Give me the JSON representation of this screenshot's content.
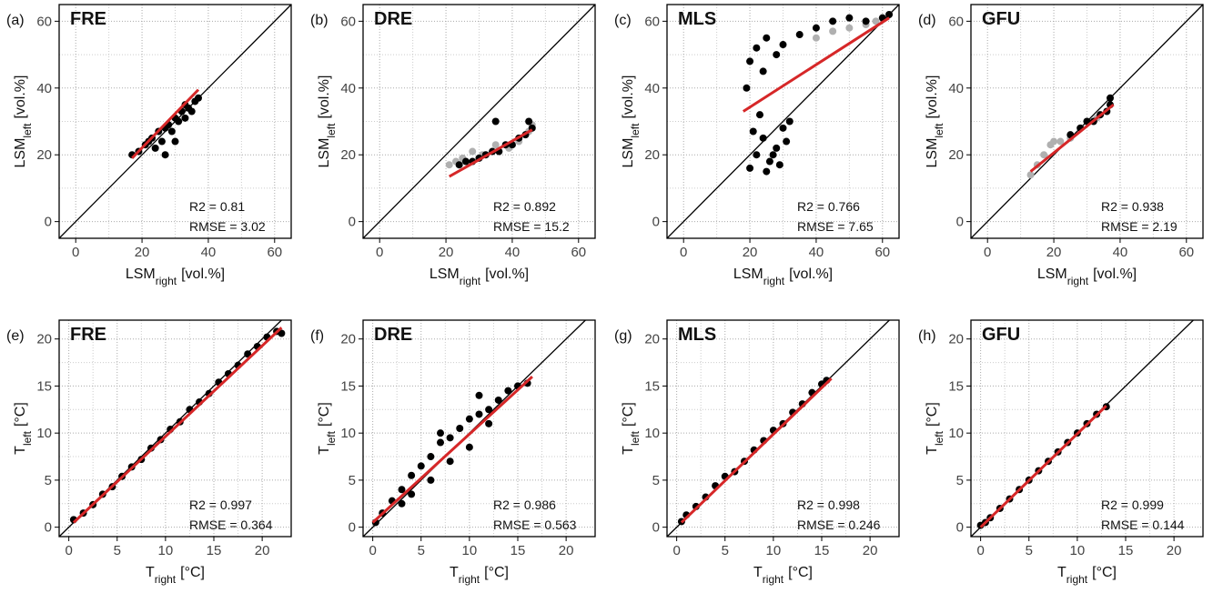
{
  "chart_data": [
    {
      "type": "scatter",
      "panel_label": "(a)",
      "title": "FRE",
      "xlabel": {
        "text": "LSM",
        "sub": "right",
        "unit": "[vol.%]"
      },
      "ylabel": {
        "text": "LSM",
        "sub": "left",
        "unit": "[vol.%]"
      },
      "xlim": [
        -5,
        65
      ],
      "ylim": [
        -5,
        65
      ],
      "xticks": [
        0,
        20,
        40,
        60
      ],
      "yticks": [
        0,
        20,
        40,
        60
      ],
      "grid": true,
      "diagonal": true,
      "annotations": [
        "R2 = 0.81",
        "RMSE = 3.02"
      ],
      "series": [
        {
          "type": "scatter",
          "color": "#000000",
          "x": [
            17,
            19,
            21,
            23,
            24,
            25,
            26,
            27,
            28,
            29,
            30,
            31,
            32,
            33,
            34,
            35,
            36,
            37,
            27,
            30,
            22,
            33
          ],
          "values": [
            20,
            21,
            23,
            25,
            22,
            27,
            24,
            28,
            29,
            27,
            31,
            30,
            33,
            31,
            34,
            33,
            36,
            37,
            20,
            24,
            24,
            35
          ]
        },
        {
          "type": "line",
          "color": "#d62728",
          "x": [
            17,
            37
          ],
          "values": [
            19,
            39.5
          ]
        }
      ]
    },
    {
      "type": "scatter",
      "panel_label": "(b)",
      "title": "DRE",
      "xlabel": {
        "text": "LSM",
        "sub": "right",
        "unit": "[vol.%]"
      },
      "ylabel": {
        "text": "LSM",
        "sub": "left",
        "unit": "[vol.%]"
      },
      "xlim": [
        -5,
        65
      ],
      "ylim": [
        -5,
        65
      ],
      "xticks": [
        0,
        20,
        40,
        60
      ],
      "yticks": [
        0,
        20,
        40,
        60
      ],
      "grid": true,
      "diagonal": true,
      "annotations": [
        "R2 = 0.892",
        "RMSE = 15.2"
      ],
      "series": [
        {
          "type": "scatter",
          "color": "#b0b0b0",
          "x": [
            21,
            23,
            25,
            28,
            31,
            35,
            39,
            42,
            45,
            46
          ],
          "values": [
            17,
            18,
            19,
            21,
            20,
            23,
            22,
            24,
            27,
            29
          ]
        },
        {
          "type": "scatter",
          "color": "#000000",
          "x": [
            24,
            26,
            28,
            30,
            32,
            34,
            36,
            38,
            40,
            42,
            44,
            46,
            35,
            45
          ],
          "values": [
            17,
            18,
            18,
            19,
            20,
            21,
            21,
            23,
            23,
            25,
            26,
            28,
            30,
            30
          ]
        },
        {
          "type": "line",
          "color": "#d62728",
          "x": [
            21,
            46
          ],
          "values": [
            13.5,
            27.5
          ]
        }
      ]
    },
    {
      "type": "scatter",
      "panel_label": "(c)",
      "title": "MLS",
      "xlabel": {
        "text": "LSM",
        "sub": "right",
        "unit": "[vol.%]"
      },
      "ylabel": {
        "text": "LSM",
        "sub": "left",
        "unit": "[vol.%]"
      },
      "xlim": [
        -5,
        65
      ],
      "ylim": [
        -5,
        65
      ],
      "xticks": [
        0,
        20,
        40,
        60
      ],
      "yticks": [
        0,
        20,
        40,
        60
      ],
      "grid": true,
      "diagonal": true,
      "annotations": [
        "R2 = 0.766",
        "RMSE = 7.65"
      ],
      "series": [
        {
          "type": "scatter",
          "color": "#b0b0b0",
          "x": [
            40,
            45,
            50,
            55,
            58
          ],
          "values": [
            55,
            57,
            58,
            59,
            60
          ]
        },
        {
          "type": "scatter",
          "color": "#000000",
          "x": [
            20,
            22,
            24,
            26,
            28,
            30,
            32,
            21,
            25,
            29,
            31,
            23,
            27,
            20,
            22,
            25,
            30,
            35,
            40,
            45,
            50,
            55,
            60,
            62,
            24,
            28,
            19
          ],
          "values": [
            16,
            20,
            25,
            18,
            22,
            28,
            30,
            27,
            15,
            17,
            24,
            32,
            20,
            48,
            52,
            55,
            53,
            56,
            58,
            60,
            61,
            60,
            61,
            62,
            45,
            50,
            40
          ]
        },
        {
          "type": "line",
          "color": "#d62728",
          "x": [
            18,
            62
          ],
          "values": [
            33,
            61
          ]
        }
      ]
    },
    {
      "type": "scatter",
      "panel_label": "(d)",
      "title": "GFU",
      "xlabel": {
        "text": "LSM",
        "sub": "right",
        "unit": "[vol.%]"
      },
      "ylabel": {
        "text": "LSM",
        "sub": "left",
        "unit": "[vol.%]"
      },
      "xlim": [
        -5,
        65
      ],
      "ylim": [
        -5,
        65
      ],
      "xticks": [
        0,
        20,
        40,
        60
      ],
      "yticks": [
        0,
        20,
        40,
        60
      ],
      "grid": true,
      "diagonal": true,
      "annotations": [
        "R2 = 0.938",
        "RMSE = 2.19"
      ],
      "series": [
        {
          "type": "scatter",
          "color": "#b0b0b0",
          "x": [
            13,
            15,
            17,
            19,
            20,
            22,
            25,
            28,
            30,
            33
          ],
          "values": [
            14,
            17,
            20,
            23,
            24,
            24,
            25,
            28,
            30,
            31
          ]
        },
        {
          "type": "scatter",
          "color": "#000000",
          "x": [
            25,
            28,
            30,
            32,
            34,
            36,
            37,
            37
          ],
          "values": [
            26,
            28,
            30,
            30,
            32,
            33,
            35,
            37
          ]
        },
        {
          "type": "line",
          "color": "#d62728",
          "x": [
            13,
            38
          ],
          "values": [
            15,
            35
          ]
        }
      ]
    },
    {
      "type": "scatter",
      "panel_label": "(e)",
      "title": "FRE",
      "xlabel": {
        "text": "T",
        "sub": "right",
        "unit": "[°C]"
      },
      "ylabel": {
        "text": "T",
        "sub": "left",
        "unit": "[°C]"
      },
      "xlim": [
        -1,
        23
      ],
      "ylim": [
        -1,
        22
      ],
      "xticks": [
        0,
        5,
        10,
        15,
        20
      ],
      "yticks": [
        0,
        5,
        10,
        15,
        20
      ],
      "grid": true,
      "diagonal": true,
      "annotations": [
        "R2 = 0.997",
        "RMSE = 0.364"
      ],
      "series": [
        {
          "type": "scatter",
          "color": "#000000",
          "x": [
            0.5,
            1.5,
            2.5,
            3.5,
            4.5,
            5.5,
            6.5,
            7.5,
            8.5,
            9.5,
            10.5,
            11.5,
            12.5,
            13.5,
            14.5,
            15.5,
            16.5,
            17.5,
            18.5,
            19.5,
            20.5,
            21.5,
            22
          ],
          "values": [
            0.8,
            1.5,
            2.4,
            3.5,
            4.3,
            5.4,
            6.4,
            7.2,
            8.4,
            9.3,
            10.4,
            11.2,
            12.5,
            13.3,
            14.2,
            15.4,
            16.3,
            17.2,
            18.4,
            19.2,
            20.2,
            20.8,
            20.6
          ]
        },
        {
          "type": "line",
          "color": "#d62728",
          "x": [
            0.5,
            22
          ],
          "values": [
            0.5,
            21.2
          ]
        }
      ]
    },
    {
      "type": "scatter",
      "panel_label": "(f)",
      "title": "DRE",
      "xlabel": {
        "text": "T",
        "sub": "right",
        "unit": "[°C]"
      },
      "ylabel": {
        "text": "T",
        "sub": "left",
        "unit": "[°C]"
      },
      "xlim": [
        -1,
        23
      ],
      "ylim": [
        -1,
        22
      ],
      "xticks": [
        0,
        5,
        10,
        15,
        20
      ],
      "yticks": [
        0,
        5,
        10,
        15,
        20
      ],
      "grid": true,
      "diagonal": true,
      "annotations": [
        "R2 = 0.986",
        "RMSE = 0.563"
      ],
      "series": [
        {
          "type": "scatter",
          "color": "#000000",
          "x": [
            0.3,
            1,
            2,
            3,
            4,
            5,
            6,
            7,
            8,
            9,
            10,
            11,
            12,
            13,
            14,
            15,
            16,
            4,
            6,
            8,
            10,
            12,
            3,
            7,
            11
          ],
          "values": [
            0.5,
            1.5,
            2.8,
            4,
            5.5,
            6.5,
            7.5,
            9,
            9.5,
            10.5,
            11.5,
            12,
            12.5,
            13.5,
            14.5,
            15,
            15.3,
            3.5,
            5,
            7,
            8.5,
            11,
            2.5,
            10,
            14
          ]
        },
        {
          "type": "line",
          "color": "#d62728",
          "x": [
            0,
            16.5
          ],
          "values": [
            0.5,
            16
          ]
        }
      ]
    },
    {
      "type": "scatter",
      "panel_label": "(g)",
      "title": "MLS",
      "xlabel": {
        "text": "T",
        "sub": "right",
        "unit": "[°C]"
      },
      "ylabel": {
        "text": "T",
        "sub": "left",
        "unit": "[°C]"
      },
      "xlim": [
        -1,
        23
      ],
      "ylim": [
        -1,
        22
      ],
      "xticks": [
        0,
        5,
        10,
        15,
        20
      ],
      "yticks": [
        0,
        5,
        10,
        15,
        20
      ],
      "grid": true,
      "diagonal": true,
      "annotations": [
        "R2 = 0.998",
        "RMSE = 0.246"
      ],
      "series": [
        {
          "type": "scatter",
          "color": "#000000",
          "x": [
            0.5,
            1,
            2,
            3,
            4,
            5,
            6,
            7,
            8,
            9,
            10,
            11,
            12,
            13,
            14,
            15,
            15.5
          ],
          "values": [
            0.6,
            1.3,
            2.2,
            3.2,
            4.4,
            5.4,
            5.9,
            7,
            8.2,
            9.2,
            10.3,
            11,
            12.2,
            13.1,
            14.3,
            15.2,
            15.6
          ]
        },
        {
          "type": "line",
          "color": "#d62728",
          "x": [
            0.5,
            16
          ],
          "values": [
            0.5,
            15.8
          ]
        }
      ]
    },
    {
      "type": "scatter",
      "panel_label": "(h)",
      "title": "GFU",
      "xlabel": {
        "text": "T",
        "sub": "right",
        "unit": "[°C]"
      },
      "ylabel": {
        "text": "T",
        "sub": "left",
        "unit": "[°C]"
      },
      "xlim": [
        -1,
        23
      ],
      "ylim": [
        -1,
        22
      ],
      "xticks": [
        0,
        5,
        10,
        15,
        20
      ],
      "yticks": [
        0,
        5,
        10,
        15,
        20
      ],
      "grid": true,
      "diagonal": true,
      "annotations": [
        "R2 = 0.999",
        "RMSE = 0.144"
      ],
      "series": [
        {
          "type": "scatter",
          "color": "#000000",
          "x": [
            0,
            0.5,
            1,
            2,
            3,
            4,
            5,
            6,
            7,
            8,
            9,
            10,
            11,
            12,
            13
          ],
          "values": [
            0.2,
            0.5,
            1,
            2,
            3,
            4,
            5,
            6,
            7,
            8,
            9,
            10,
            11,
            12,
            12.8
          ]
        },
        {
          "type": "line",
          "color": "#d62728",
          "x": [
            0,
            13
          ],
          "values": [
            0,
            12.9
          ]
        }
      ]
    }
  ]
}
